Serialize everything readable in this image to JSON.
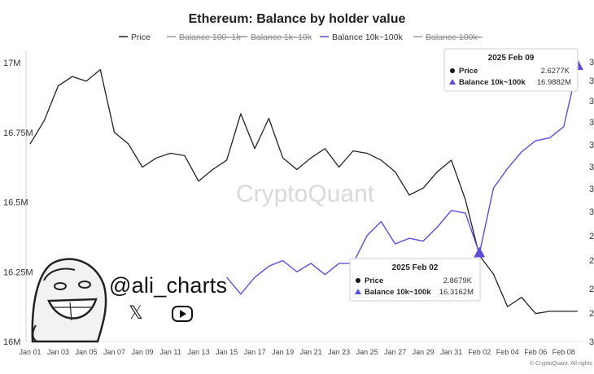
{
  "chart_data": {
    "type": "line",
    "title": "Ethereum: Balance by holder value",
    "legend": {
      "placement": "top",
      "items": [
        {
          "label": "Price",
          "active": true,
          "color": "#222222"
        },
        {
          "label": "Balance 100~1k",
          "active": false,
          "color": "#8a8a8a"
        },
        {
          "label": "Balance 1k~10k",
          "active": false,
          "color": "#8a8a8a"
        },
        {
          "label": "Balance 10k~100k",
          "active": true,
          "color": "#5b4fd6"
        },
        {
          "label": "Balance 100k~",
          "active": false,
          "color": "#8a8a8a"
        }
      ]
    },
    "x_tick_labels": [
      "Jan 01",
      "Jan 03",
      "Jan 05",
      "Jan 07",
      "Jan 09",
      "Jan 11",
      "Jan 13",
      "Jan 15",
      "Jan 17",
      "Jan 19",
      "Jan 21",
      "Jan 23",
      "Jan 25",
      "Jan 27",
      "Jan 29",
      "Jan 31",
      "Feb 02",
      "Feb 04",
      "Feb 06",
      "Feb 08"
    ],
    "y_left": {
      "ticks": [
        "16M",
        "16.25M",
        "16.5M",
        "16.75M",
        "17M"
      ],
      "range": [
        16.0,
        17.0
      ],
      "unit": "M"
    },
    "y_right_ticks": [
      "2",
      "2",
      "2",
      "2",
      "3",
      "3",
      "3",
      "3",
      "3",
      "3",
      "3",
      "3",
      "3"
    ],
    "grid": false,
    "series": [
      {
        "name": "Price",
        "axis": "right",
        "color": "#222222",
        "x": [
          "Jan 01",
          "Jan 02",
          "Jan 03",
          "Jan 04",
          "Jan 05",
          "Jan 06",
          "Jan 07",
          "Jan 08",
          "Jan 09",
          "Jan 10",
          "Jan 11",
          "Jan 12",
          "Jan 13",
          "Jan 14",
          "Jan 15",
          "Jan 16",
          "Jan 17",
          "Jan 18",
          "Jan 19",
          "Jan 20",
          "Jan 21",
          "Jan 22",
          "Jan 23",
          "Jan 24",
          "Jan 25",
          "Jan 26",
          "Jan 27",
          "Jan 28",
          "Jan 29",
          "Jan 30",
          "Jan 31",
          "Feb 01",
          "Feb 02",
          "Feb 03",
          "Feb 04",
          "Feb 05",
          "Feb 06",
          "Feb 07",
          "Feb 08",
          "Feb 09"
        ],
        "values": [
          3.35,
          3.45,
          3.6,
          3.64,
          3.62,
          3.67,
          3.4,
          3.35,
          3.25,
          3.29,
          3.31,
          3.3,
          3.19,
          3.24,
          3.28,
          3.48,
          3.33,
          3.46,
          3.29,
          3.24,
          3.29,
          3.33,
          3.25,
          3.32,
          3.31,
          3.28,
          3.23,
          3.13,
          3.16,
          3.23,
          3.28,
          3.11,
          2.87,
          2.79,
          2.65,
          2.69,
          2.62,
          2.63,
          2.63,
          2.63
        ]
      },
      {
        "name": "Balance 10k~100k",
        "axis": "left",
        "color": "#5b4fd6",
        "x": [
          "Jan 15",
          "Jan 16",
          "Jan 17",
          "Jan 18",
          "Jan 19",
          "Jan 20",
          "Jan 21",
          "Jan 22",
          "Jan 23",
          "Jan 24",
          "Jan 25",
          "Jan 26",
          "Jan 27",
          "Jan 28",
          "Jan 29",
          "Jan 30",
          "Jan 31",
          "Feb 01",
          "Feb 02",
          "Feb 03",
          "Feb 04",
          "Feb 05",
          "Feb 06",
          "Feb 07",
          "Feb 08",
          "Feb 09"
        ],
        "values": [
          16.23,
          16.17,
          16.23,
          16.27,
          16.29,
          16.25,
          16.28,
          16.24,
          16.28,
          16.28,
          16.38,
          16.43,
          16.35,
          16.37,
          16.36,
          16.41,
          16.47,
          16.46,
          16.3162,
          16.55,
          16.62,
          16.68,
          16.72,
          16.73,
          16.77,
          16.9882
        ]
      }
    ],
    "tooltips": [
      {
        "date": "2025 Feb 09",
        "price_label": "Price",
        "price_value": "2.6277K",
        "balance_label": "Balance 10k~100k",
        "balance_value": "16.9882M"
      },
      {
        "date": "2025 Feb 02",
        "price_label": "Price",
        "price_value": "2.8679K",
        "balance_label": "Balance 10k~100k",
        "balance_value": "16.3162M"
      }
    ]
  },
  "watermark": "CryptoQuant",
  "credit": "© CryptoQuant. All rights",
  "overlay": {
    "handle": "@ali_charts",
    "x_glyph": "𝕏"
  }
}
